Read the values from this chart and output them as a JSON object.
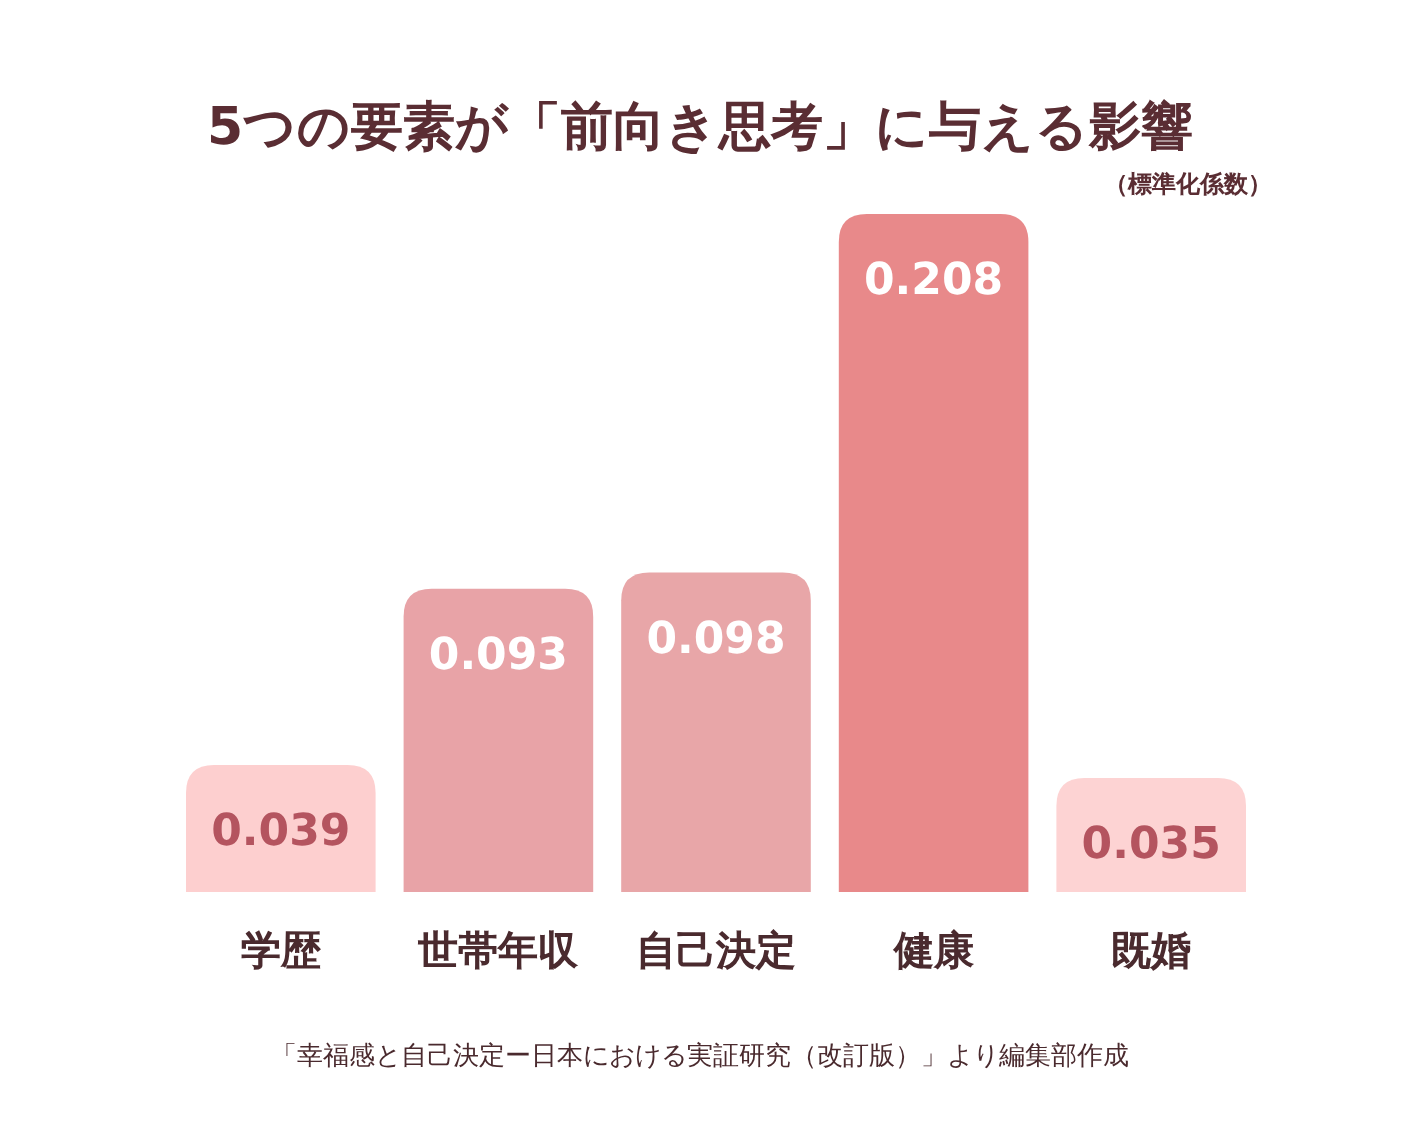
{
  "chart_data": {
    "type": "bar",
    "title": "5つの要素が「前向き思考」に与える影響",
    "subtitle": "（標準化係数）",
    "categories": [
      "学歴",
      "世帯年収",
      "自己決定",
      "健康",
      "既婚"
    ],
    "values": [
      0.039,
      0.093,
      0.098,
      0.208,
      0.035
    ],
    "colors": [
      "#fdcfcf",
      "#e8a3a7",
      "#e8a6a8",
      "#e8898a",
      "#fdd3d3"
    ],
    "data_labels": true,
    "annotations": [
      "「幸福感と自己決定ー日本における実証研究（改訂版）」より編集部作成"
    ]
  }
}
